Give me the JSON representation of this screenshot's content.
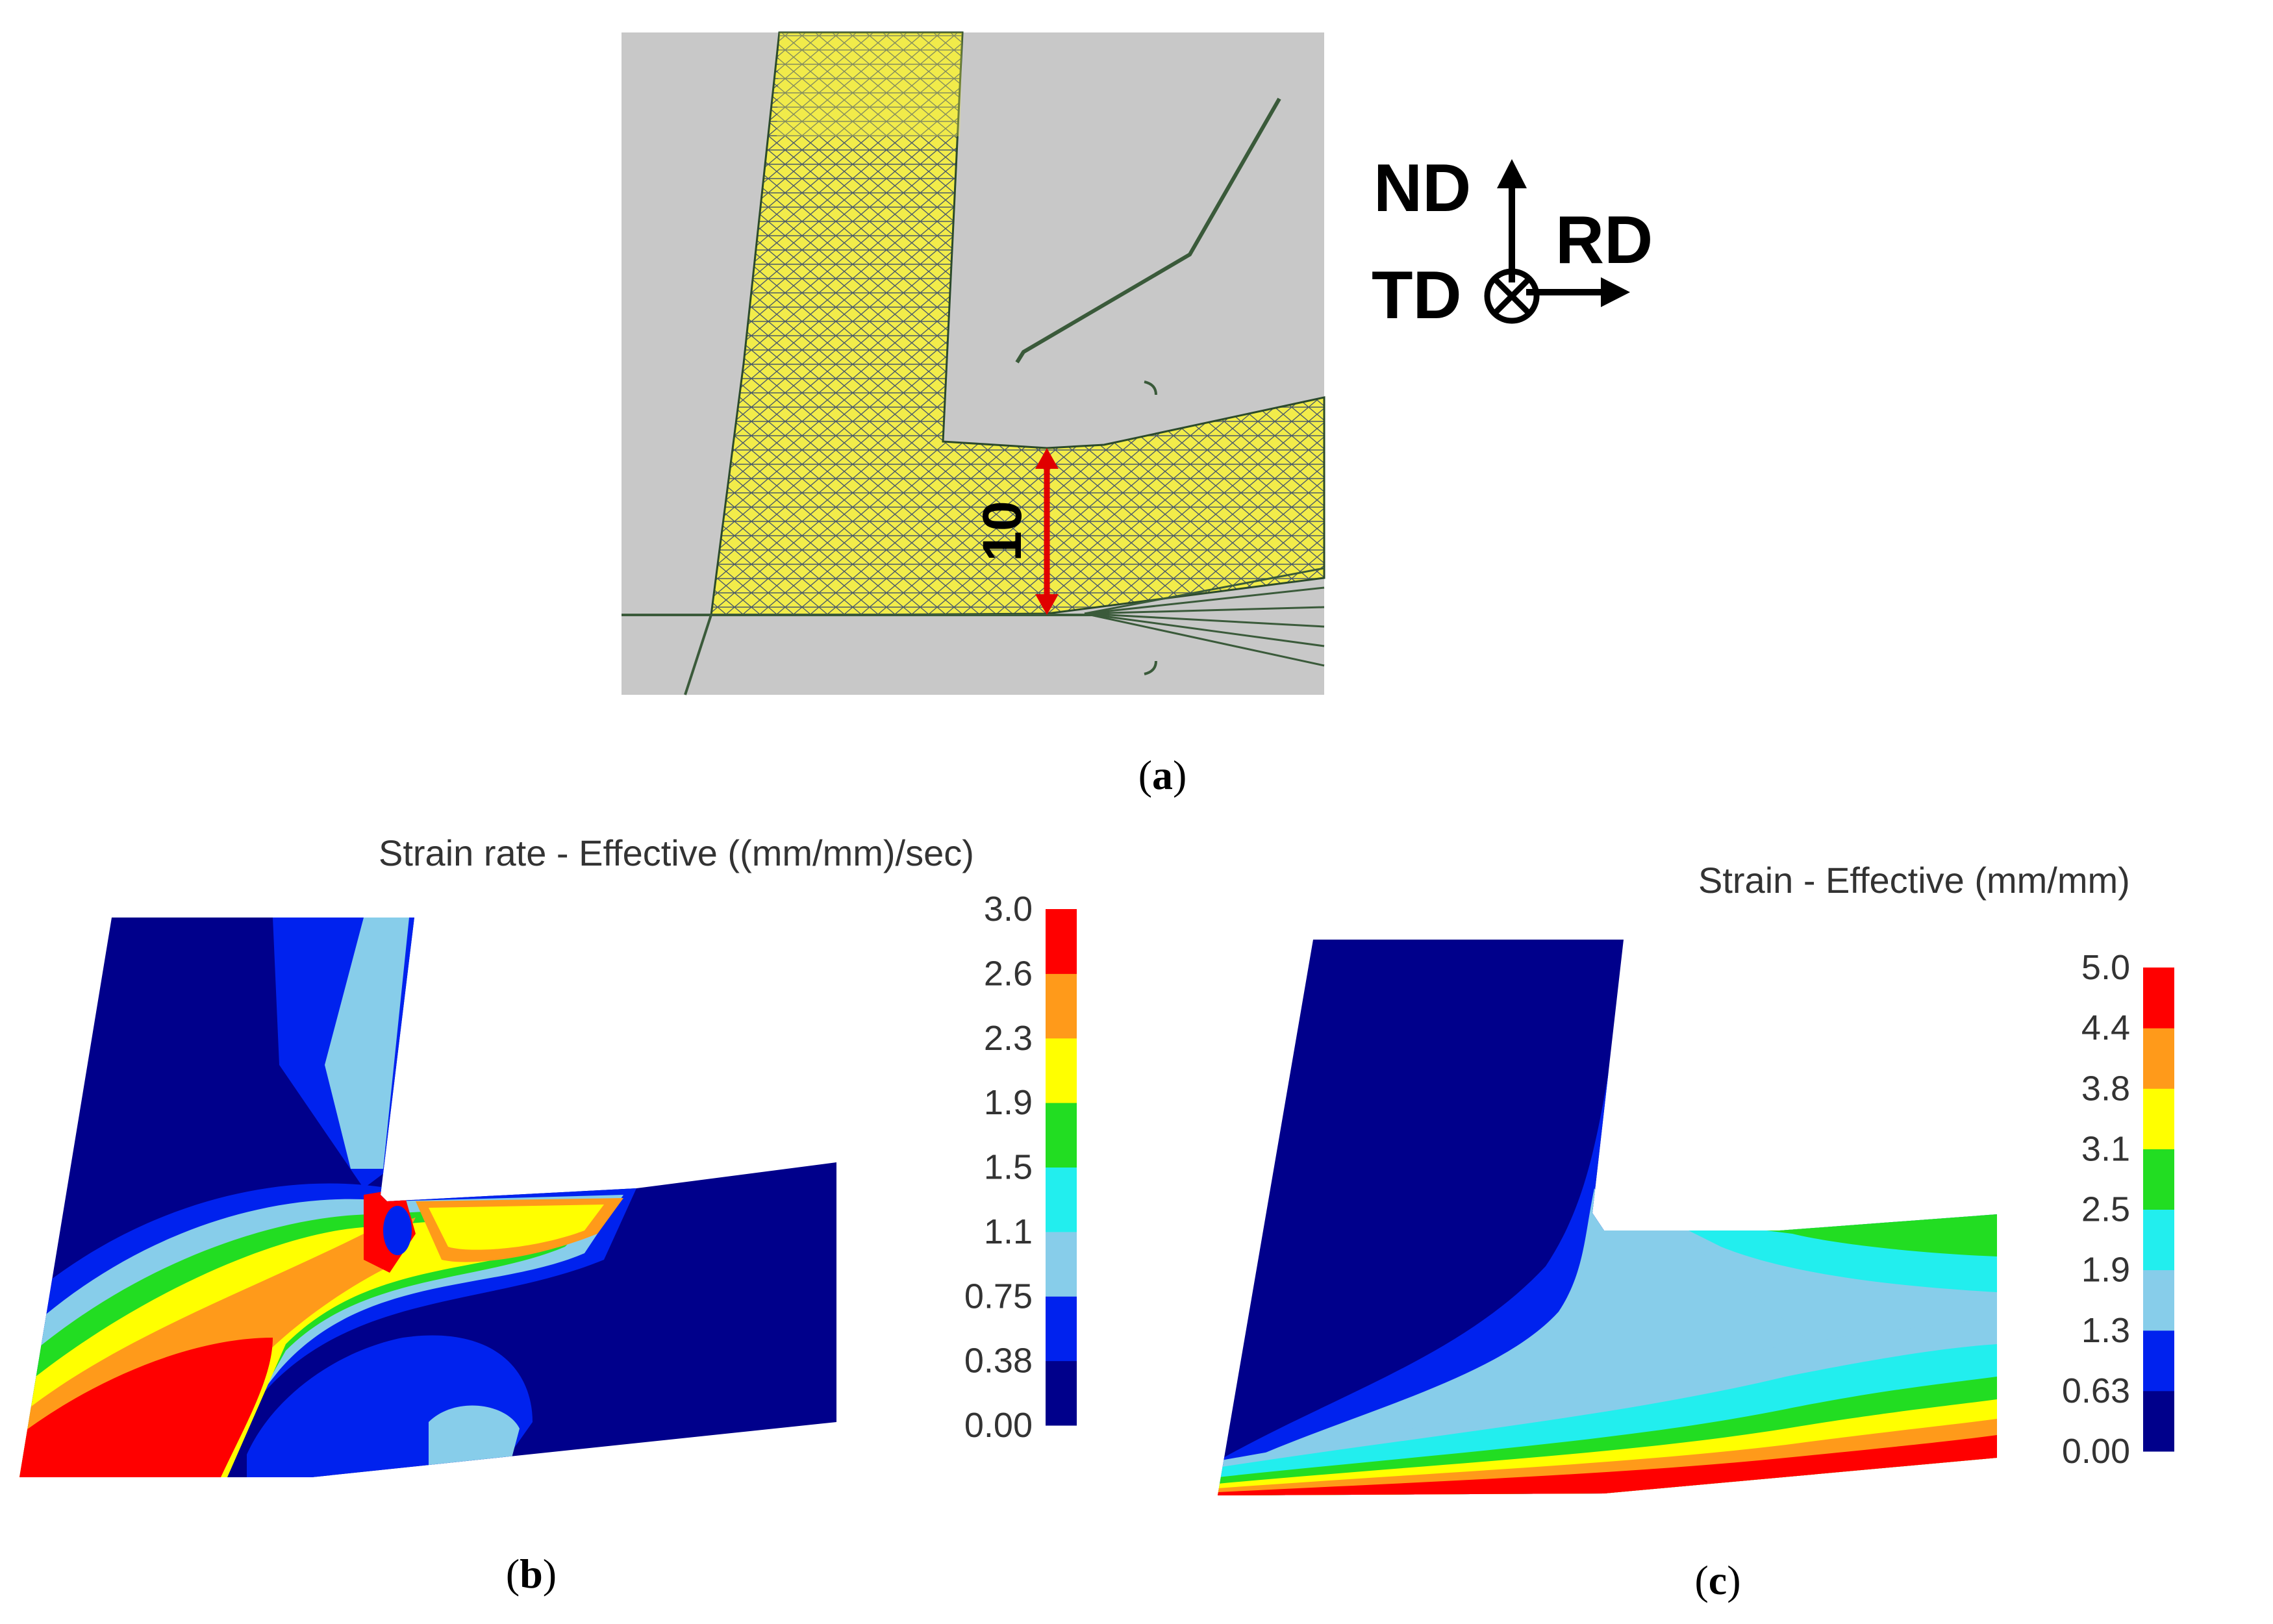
{
  "panel_a": {
    "caption_letter": "a",
    "dimension_label": "10",
    "axes": {
      "normal": "ND",
      "rolling": "RD",
      "transverse": "TD"
    }
  },
  "panel_b": {
    "caption_letter": "b",
    "colorbar": {
      "title": "Strain rate - Effective ((mm/mm)/sec)",
      "ticks": [
        "0.00",
        "0.38",
        "0.75",
        "1.1",
        "1.5",
        "1.9",
        "2.3",
        "2.6",
        "3.0"
      ]
    }
  },
  "panel_c": {
    "caption_letter": "c",
    "colorbar": {
      "title": "Strain - Effective (mm/mm)",
      "ticks": [
        "0.00",
        "0.63",
        "1.3",
        "1.9",
        "2.5",
        "3.1",
        "3.8",
        "4.4",
        "5.0"
      ]
    }
  },
  "colors": {
    "level_1": "#00008b",
    "level_2": "#0022ee",
    "level_3": "#87cdea",
    "level_4": "#22eeee",
    "level_5": "#22dd22",
    "level_6": "#ffff00",
    "level_7": "#ff9a1a",
    "level_8": "#ff0000",
    "mesh_yellow": "#f2ec4a",
    "die_gray": "#c8c8c8",
    "dimension_red": "#e00000"
  }
}
